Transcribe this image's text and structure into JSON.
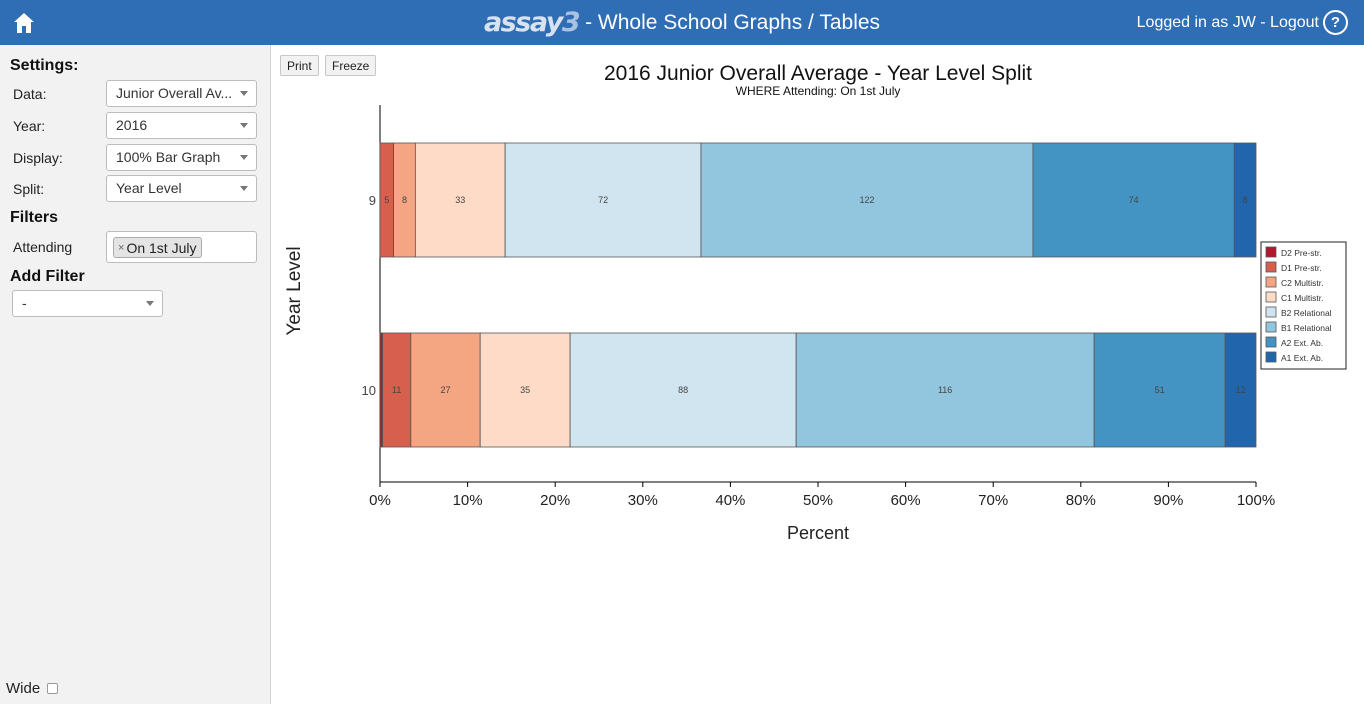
{
  "header": {
    "logo_text": "assay",
    "logo_number": "3",
    "title": "- Whole School Graphs / Tables",
    "login_text": "Logged in as JW - Logout",
    "help_icon": "question-circle-icon",
    "home_icon": "home-icon",
    "bar_color": "#2f6db5"
  },
  "sidebar": {
    "settings_title": "Settings:",
    "fields": [
      {
        "label": "Data:",
        "value": "Junior Overall Av..."
      },
      {
        "label": "Year:",
        "value": "2016"
      },
      {
        "label": "Display:",
        "value": "100% Bar Graph"
      },
      {
        "label": "Split:",
        "value": "Year Level"
      }
    ],
    "filters_title": "Filters",
    "attending_label": "Attending",
    "attending_tag": "On 1st July",
    "add_filter_title": "Add Filter",
    "add_filter_value": "-",
    "wide_label": "Wide"
  },
  "toolbar": {
    "print_label": "Print",
    "freeze_label": "Freeze"
  },
  "chart_data": {
    "type": "bar",
    "orientation": "horizontal",
    "stacking": "percent",
    "title": "2016 Junior Overall Average - Year Level Split",
    "subtitle": "WHERE Attending: On 1st July",
    "xlabel": "Percent",
    "ylabel": "Year Level",
    "xlim": [
      0,
      100
    ],
    "x_ticks": [
      "0%",
      "10%",
      "20%",
      "30%",
      "40%",
      "50%",
      "60%",
      "70%",
      "80%",
      "90%",
      "100%"
    ],
    "categories": [
      "9",
      "10"
    ],
    "legend_position": "right",
    "series": [
      {
        "name": "D2 Pre-str.",
        "color": "#b2182b",
        "values": [
          0,
          1
        ],
        "labels": [
          "",
          ""
        ]
      },
      {
        "name": "D1 Pre-str.",
        "color": "#d6604d",
        "values": [
          5,
          11
        ],
        "labels": [
          "5",
          "11"
        ]
      },
      {
        "name": "C2 Multistr.",
        "color": "#f4a582",
        "values": [
          8,
          27
        ],
        "labels": [
          "8",
          "27"
        ]
      },
      {
        "name": "C1 Multistr.",
        "color": "#fddbc7",
        "values": [
          33,
          35
        ],
        "labels": [
          "33",
          "35"
        ]
      },
      {
        "name": "B2 Relational",
        "color": "#d1e5f0",
        "values": [
          72,
          88
        ],
        "labels": [
          "72",
          "88"
        ]
      },
      {
        "name": "B1 Relational",
        "color": "#92c5de",
        "values": [
          122,
          116
        ],
        "labels": [
          "122",
          "116"
        ]
      },
      {
        "name": "A2 Ext. Ab.",
        "color": "#4393c3",
        "values": [
          74,
          51
        ],
        "labels": [
          "74",
          "51"
        ]
      },
      {
        "name": "A1 Ext. Ab.",
        "color": "#2166ac",
        "values": [
          8,
          12
        ],
        "labels": [
          "8",
          "12"
        ]
      }
    ]
  }
}
